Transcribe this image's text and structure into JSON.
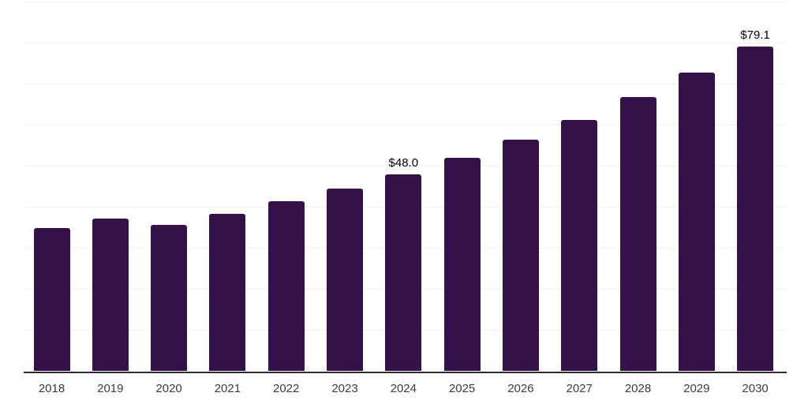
{
  "chart_data": {
    "type": "bar",
    "title": "",
    "xlabel": "",
    "ylabel": "",
    "categories": [
      "2018",
      "2019",
      "2020",
      "2021",
      "2022",
      "2023",
      "2024",
      "2025",
      "2026",
      "2027",
      "2028",
      "2029",
      "2030"
    ],
    "values": [
      34.9,
      37.2,
      35.6,
      38.4,
      41.4,
      44.5,
      48.0,
      52.0,
      56.3,
      61.2,
      66.7,
      72.7,
      79.1
    ],
    "annotations": [
      {
        "category": "2024",
        "text": "$48.0"
      },
      {
        "category": "2030",
        "text": "$79.1"
      }
    ],
    "ylim": [
      0,
      90
    ],
    "gridline_step": 10,
    "grid": true,
    "legend_position": "none",
    "colors": {
      "bar": "#35114A",
      "axis_line": "#2D2D2D",
      "gridline": "#F0F0F1",
      "tick_label": "#3C3C3C",
      "value_label": "#000000",
      "background": "#FFFFFF"
    }
  }
}
